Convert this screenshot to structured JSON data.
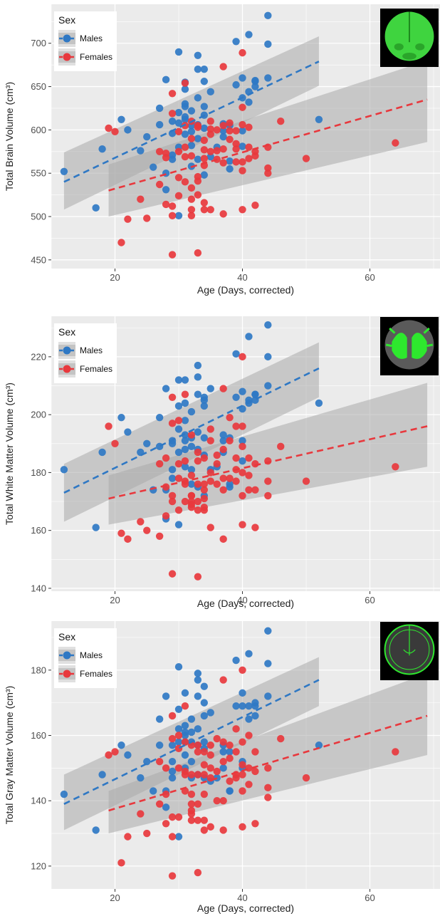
{
  "chart_data": [
    {
      "type": "scatter",
      "title": "",
      "xlabel": "Age (Days, corrected)",
      "ylabel": "Total Brain Volume (cm³)",
      "xlim": [
        10,
        71
      ],
      "ylim": [
        440,
        745
      ],
      "xticks": [
        20,
        40,
        60
      ],
      "yticks": [
        450,
        500,
        550,
        600,
        650,
        700
      ],
      "grid": true,
      "legend": {
        "title": "Sex",
        "position": "top-left",
        "entries": [
          "Males",
          "Females"
        ]
      },
      "inset": "brain-coronal-slice-whole",
      "colors": {
        "Males": "#2f78c4",
        "Females": "#e8383d",
        "band": "#aaaaaa"
      },
      "series": [
        {
          "name": "Males",
          "fit": {
            "x": [
              12,
              52
            ],
            "y": [
              540,
              679
            ]
          },
          "band_upper": [
            574,
            708
          ],
          "band_lower": [
            508,
            651
          ],
          "x": [
            12,
            17,
            18,
            21,
            22,
            24,
            25,
            26,
            27,
            27,
            28,
            28,
            28,
            29,
            29,
            29,
            29,
            30,
            30,
            30,
            30,
            30,
            31,
            31,
            31,
            31,
            31,
            31,
            31,
            32,
            32,
            32,
            32,
            32,
            33,
            33,
            33,
            33,
            33,
            33,
            34,
            34,
            34,
            34,
            34,
            34,
            35,
            35,
            36,
            37,
            37,
            37,
            38,
            38,
            38,
            39,
            39,
            40,
            40,
            40,
            40,
            41,
            41,
            41,
            42,
            42,
            42,
            44,
            44,
            44,
            52
          ],
          "y": [
            552,
            510,
            578,
            612,
            600,
            576,
            592,
            557,
            625,
            606,
            658,
            531,
            550,
            596,
            571,
            566,
            610,
            690,
            620,
            608,
            580,
            501,
            655,
            630,
            647,
            627,
            615,
            612,
            595,
            622,
            605,
            598,
            582,
            558,
            686,
            670,
            637,
            606,
            590,
            566,
            670,
            656,
            627,
            617,
            602,
            548,
            644,
            569,
            580,
            607,
            599,
            592,
            605,
            564,
            555,
            702,
            652,
            660,
            637,
            581,
            599,
            710,
            644,
            632,
            657,
            650,
            656,
            732,
            699,
            660,
            612
          ]
        },
        {
          "name": "Females",
          "fit": {
            "x": [
              19,
              69
            ],
            "y": [
              530,
              635
            ]
          },
          "band_upper": [
            560,
            680
          ],
          "band_lower": [
            500,
            586
          ],
          "x": [
            19,
            20,
            21,
            22,
            24,
            25,
            27,
            27,
            28,
            28,
            28,
            29,
            29,
            29,
            29,
            29,
            30,
            30,
            30,
            30,
            31,
            31,
            31,
            31,
            31,
            32,
            32,
            32,
            32,
            32,
            32,
            32,
            33,
            33,
            33,
            33,
            33,
            33,
            34,
            34,
            34,
            34,
            34,
            34,
            35,
            35,
            35,
            35,
            35,
            36,
            36,
            36,
            37,
            37,
            37,
            37,
            37,
            38,
            38,
            38,
            39,
            39,
            39,
            39,
            40,
            40,
            40,
            40,
            40,
            40,
            41,
            41,
            41,
            42,
            42,
            42,
            44,
            44,
            44,
            46,
            50,
            64
          ],
          "y": [
            602,
            598,
            470,
            497,
            520,
            498,
            575,
            537,
            568,
            514,
            573,
            642,
            619,
            501,
            456,
            512,
            545,
            598,
            575,
            524,
            654,
            605,
            580,
            569,
            540,
            610,
            590,
            570,
            533,
            520,
            501,
            508,
            605,
            603,
            546,
            541,
            525,
            458,
            588,
            577,
            567,
            559,
            516,
            508,
            610,
            601,
            595,
            575,
            508,
            600,
            576,
            566,
            673,
            605,
            578,
            562,
            503,
            608,
            599,
            589,
            599,
            584,
            578,
            563,
            689,
            626,
            606,
            563,
            553,
            508,
            603,
            580,
            567,
            570,
            575,
            513,
            580,
            556,
            550,
            610,
            567,
            585
          ]
        }
      ]
    },
    {
      "type": "scatter",
      "title": "",
      "xlabel": "Age (Days, corrected)",
      "ylabel": "Total White Matter Volume (cm³)",
      "xlim": [
        10,
        71
      ],
      "ylim": [
        139,
        234
      ],
      "xticks": [
        20,
        40,
        60
      ],
      "yticks": [
        140,
        160,
        180,
        200,
        220
      ],
      "grid": true,
      "legend": {
        "title": "Sex",
        "position": "top-left",
        "entries": [
          "Males",
          "Females"
        ]
      },
      "inset": "brain-coronal-slice-white-matter",
      "colors": {
        "Males": "#2f78c4",
        "Females": "#e8383d",
        "band": "#aaaaaa"
      },
      "series": [
        {
          "name": "Males",
          "fit": {
            "x": [
              12,
              52
            ],
            "y": [
              173,
              216
            ]
          },
          "band_upper": [
            183,
            225
          ],
          "band_lower": [
            163,
            206
          ],
          "x": [
            12,
            17,
            18,
            21,
            22,
            24,
            25,
            26,
            27,
            27,
            28,
            28,
            28,
            29,
            29,
            29,
            29,
            30,
            30,
            30,
            30,
            30,
            31,
            31,
            31,
            31,
            31,
            31,
            31,
            32,
            32,
            32,
            32,
            32,
            33,
            33,
            33,
            33,
            33,
            33,
            34,
            34,
            34,
            34,
            34,
            34,
            35,
            35,
            36,
            37,
            37,
            37,
            38,
            38,
            38,
            39,
            39,
            40,
            40,
            40,
            40,
            41,
            41,
            41,
            42,
            42,
            42,
            44,
            44,
            44,
            52
          ],
          "y": [
            181,
            161,
            187,
            199,
            194,
            187,
            190,
            174,
            199,
            189,
            209,
            164,
            174,
            190,
            181,
            178,
            191,
            212,
            203,
            195,
            187,
            162,
            212,
            204,
            198,
            193,
            191,
            188,
            182,
            201,
            192,
            189,
            181,
            176,
            217,
            213,
            207,
            194,
            188,
            175,
            206,
            205,
            203,
            192,
            186,
            172,
            209,
            181,
            182,
            193,
            191,
            187,
            192,
            176,
            175,
            221,
            206,
            208,
            202,
            184,
            191,
            227,
            205,
            204,
            207,
            205,
            207,
            231,
            220,
            210,
            204
          ]
        },
        {
          "name": "Females",
          "fit": {
            "x": [
              19,
              69
            ],
            "y": [
              171,
              196
            ]
          },
          "band_upper": [
            179,
            211
          ],
          "band_lower": [
            162,
            182
          ],
          "x": [
            19,
            20,
            21,
            22,
            24,
            25,
            27,
            27,
            28,
            28,
            28,
            29,
            29,
            29,
            29,
            29,
            30,
            30,
            30,
            30,
            31,
            31,
            31,
            31,
            31,
            32,
            32,
            32,
            32,
            32,
            32,
            32,
            33,
            33,
            33,
            33,
            33,
            33,
            34,
            34,
            34,
            34,
            34,
            34,
            35,
            35,
            35,
            35,
            35,
            36,
            36,
            36,
            37,
            37,
            37,
            37,
            37,
            38,
            38,
            38,
            39,
            39,
            39,
            39,
            40,
            40,
            40,
            40,
            40,
            40,
            41,
            41,
            41,
            42,
            42,
            42,
            44,
            44,
            44,
            46,
            50,
            64
          ],
          "y": [
            196,
            190,
            159,
            157,
            163,
            160,
            183,
            158,
            185,
            175,
            165,
            206,
            197,
            170,
            145,
            172,
            183,
            198,
            178,
            167,
            207,
            184,
            177,
            176,
            170,
            193,
            179,
            172,
            170,
            169,
            168,
            172,
            187,
            184,
            176,
            170,
            167,
            144,
            185,
            176,
            174,
            171,
            168,
            167,
            195,
            191,
            180,
            177,
            161,
            186,
            183,
            176,
            209,
            188,
            178,
            174,
            157,
            199,
            191,
            178,
            196,
            185,
            181,
            177,
            220,
            196,
            189,
            180,
            172,
            162,
            185,
            179,
            174,
            183,
            174,
            161,
            184,
            177,
            172,
            189,
            177,
            182
          ]
        }
      ]
    },
    {
      "type": "scatter",
      "title": "",
      "xlabel": "Age (Days, corrected)",
      "ylabel": "Total Gray Matter Volume (cm³)",
      "xlim": [
        10,
        71
      ],
      "ylim": [
        113,
        195
      ],
      "xticks": [
        20,
        40,
        60
      ],
      "yticks": [
        120,
        140,
        160,
        180
      ],
      "grid": true,
      "legend": {
        "title": "Sex",
        "position": "top-left",
        "entries": [
          "Males",
          "Females"
        ]
      },
      "inset": "brain-coronal-slice-gray-matter",
      "colors": {
        "Males": "#2f78c4",
        "Females": "#e8383d",
        "band": "#aaaaaa"
      },
      "series": [
        {
          "name": "Males",
          "fit": {
            "x": [
              12,
              52
            ],
            "y": [
              139,
              177
            ]
          },
          "band_upper": [
            148,
            184
          ],
          "band_lower": [
            131,
            169
          ],
          "x": [
            12,
            17,
            18,
            21,
            22,
            24,
            25,
            26,
            27,
            27,
            28,
            28,
            28,
            29,
            29,
            29,
            29,
            30,
            30,
            30,
            30,
            30,
            31,
            31,
            31,
            31,
            31,
            31,
            31,
            32,
            32,
            32,
            32,
            32,
            33,
            33,
            33,
            33,
            33,
            33,
            34,
            34,
            34,
            34,
            34,
            34,
            35,
            35,
            36,
            37,
            37,
            37,
            38,
            38,
            38,
            39,
            39,
            40,
            40,
            40,
            40,
            41,
            41,
            41,
            42,
            42,
            42,
            44,
            44,
            44,
            52
          ],
          "y": [
            142,
            131,
            148,
            157,
            154,
            147,
            152,
            143,
            165,
            157,
            172,
            138,
            143,
            157,
            149,
            147,
            152,
            181,
            168,
            162,
            158,
            129,
            173,
            163,
            161,
            160,
            158,
            154,
            150,
            165,
            161,
            158,
            152,
            147,
            179,
            177,
            172,
            162,
            157,
            148,
            175,
            170,
            166,
            158,
            156,
            147,
            167,
            146,
            147,
            157,
            155,
            150,
            155,
            143,
            143,
            183,
            169,
            173,
            169,
            152,
            150,
            185,
            169,
            165,
            170,
            166,
            169,
            192,
            182,
            172,
            157
          ]
        },
        {
          "name": "Females",
          "fit": {
            "x": [
              19,
              69
            ],
            "y": [
              137,
              166
            ]
          },
          "band_upper": [
            143,
            179
          ],
          "band_lower": [
            130,
            154
          ],
          "x": [
            19,
            20,
            21,
            22,
            24,
            25,
            27,
            27,
            28,
            28,
            28,
            29,
            29,
            29,
            29,
            29,
            30,
            30,
            30,
            30,
            31,
            31,
            31,
            31,
            31,
            32,
            32,
            32,
            32,
            32,
            32,
            32,
            33,
            33,
            33,
            33,
            33,
            33,
            34,
            34,
            34,
            34,
            34,
            34,
            35,
            35,
            35,
            35,
            35,
            36,
            36,
            36,
            37,
            37,
            37,
            37,
            37,
            38,
            38,
            38,
            39,
            39,
            39,
            39,
            40,
            40,
            40,
            40,
            40,
            40,
            41,
            41,
            41,
            42,
            42,
            42,
            44,
            44,
            44,
            46,
            50,
            64
          ],
          "y": [
            154,
            155,
            121,
            129,
            136,
            130,
            152,
            139,
            150,
            142,
            133,
            166,
            159,
            135,
            117,
            129,
            156,
            160,
            150,
            135,
            169,
            158,
            149,
            148,
            143,
            157,
            148,
            142,
            139,
            137,
            134,
            136,
            157,
            155,
            148,
            139,
            134,
            118,
            155,
            151,
            148,
            142,
            134,
            131,
            157,
            154,
            150,
            147,
            132,
            159,
            149,
            140,
            177,
            158,
            152,
            140,
            131,
            157,
            153,
            146,
            162,
            155,
            148,
            147,
            180,
            158,
            151,
            148,
            143,
            132,
            160,
            150,
            145,
            155,
            149,
            133,
            150,
            144,
            141,
            159,
            147,
            155
          ]
        }
      ]
    }
  ]
}
